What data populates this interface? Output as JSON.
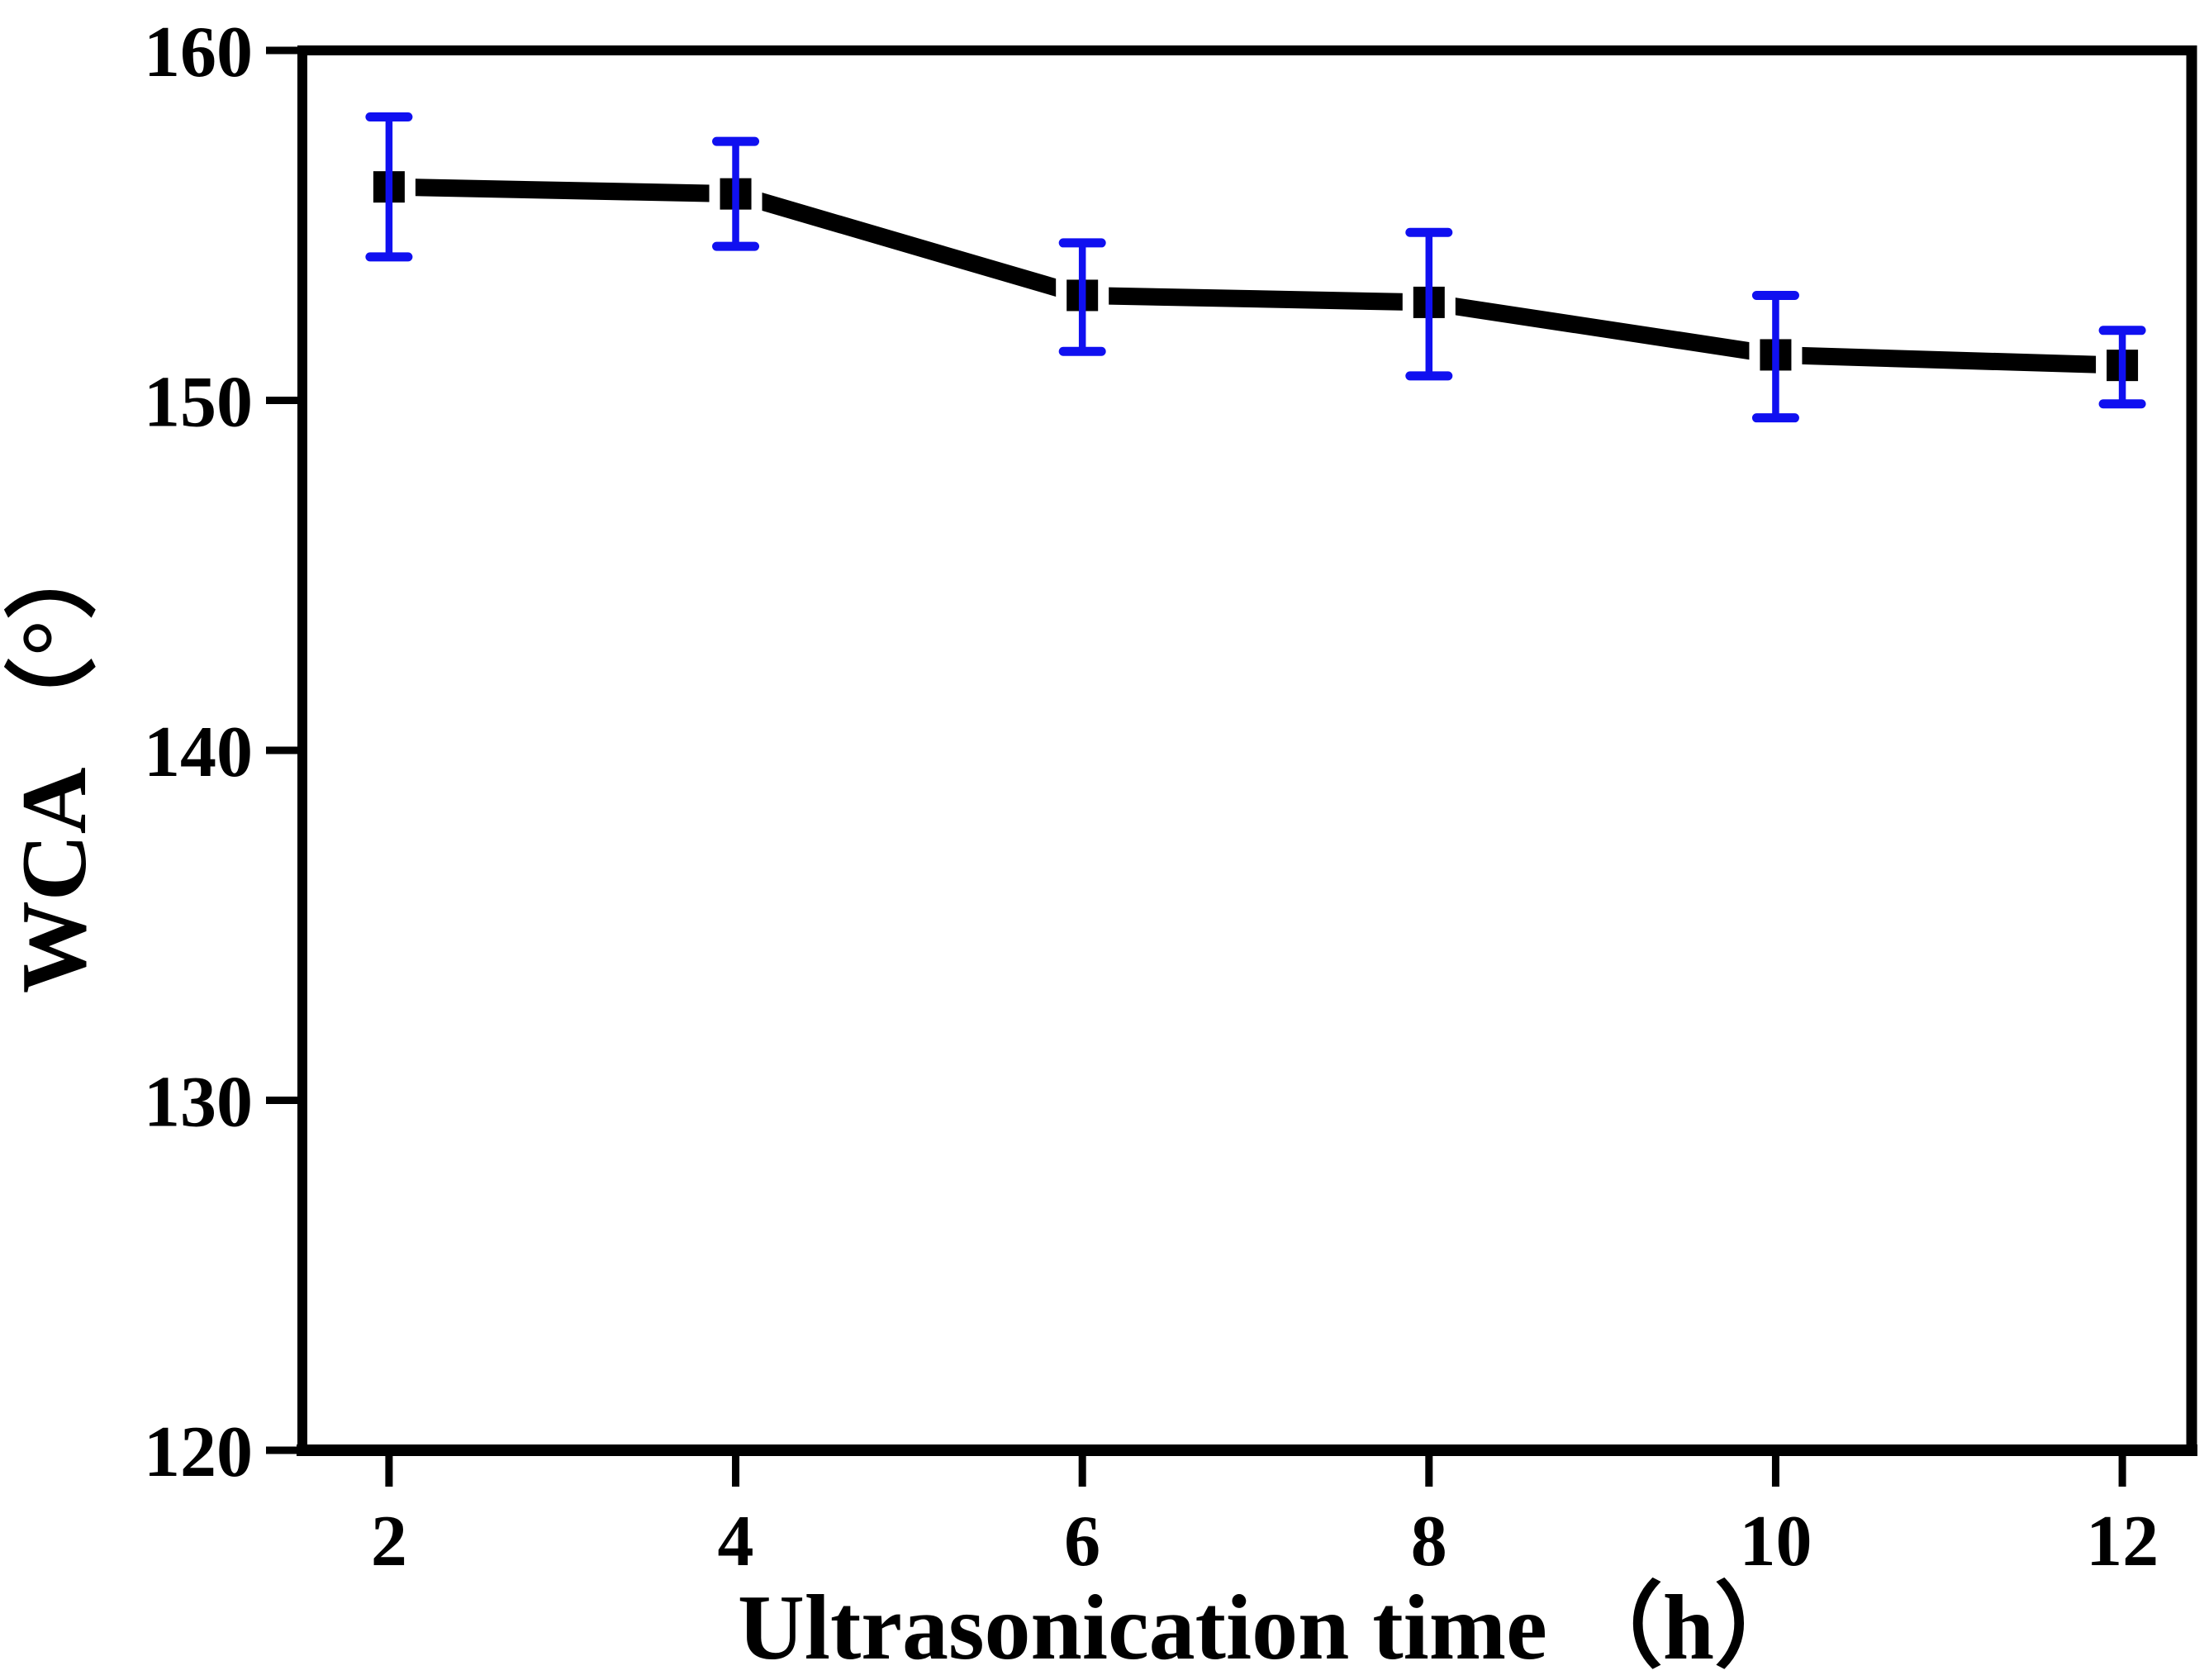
{
  "figure": {
    "background": "#ffffff"
  },
  "chart_data": {
    "type": "line",
    "title": "",
    "xlabel": "Ultrasonication time （h）",
    "ylabel": "WCA （°）",
    "x": [
      2,
      4,
      6,
      8,
      10,
      12
    ],
    "series": [
      {
        "name": "WCA",
        "values": [
          156.1,
          155.9,
          153.0,
          152.8,
          151.3,
          151.0
        ],
        "err_plus": [
          2.0,
          1.5,
          1.5,
          2.0,
          1.7,
          1.0
        ],
        "err_minus": [
          2.0,
          1.5,
          1.6,
          2.1,
          1.8,
          1.1
        ],
        "line_color": "#000000",
        "marker": "square",
        "marker_color": "#000000",
        "error_bar_color": "#1010f0"
      }
    ],
    "xlim": [
      1.5,
      12.4
    ],
    "ylim": [
      120,
      160
    ],
    "x_ticks": [
      2,
      4,
      6,
      8,
      10,
      12
    ],
    "y_ticks": [
      120,
      130,
      140,
      150,
      160
    ],
    "axis_color": "#000000",
    "grid": false,
    "legend": false
  }
}
